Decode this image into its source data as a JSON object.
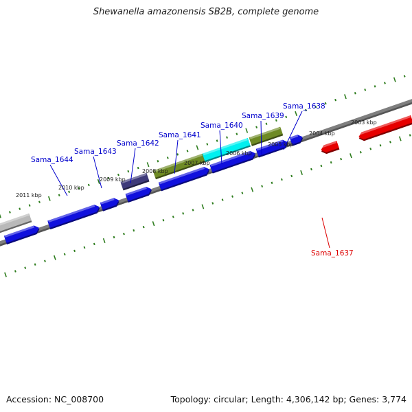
{
  "title": "Shewanella amazonensis SB2B, complete genome",
  "footer": {
    "accession": "Accession: NC_008700",
    "summary": "Topology: circular; Length: 4,306,142 bp; Genes: 3,774"
  },
  "colors": {
    "background": "#ffffff",
    "backbone": "#7f7f7f",
    "scale_ticks": "#2e7d1e",
    "cds_blue": "#1010dd",
    "cds_olive": "#6e8a24",
    "cds_cyan": "#00f0f0",
    "cds_purple": "#3e3a7a",
    "cds_gray": "#b9b9b9",
    "cds_red": "#e60000",
    "label_forward": "#0000cc",
    "label_reverse": "#dd0000"
  },
  "scale": {
    "upper_labels": [
      {
        "id": "2011",
        "text": "2011 kbp"
      },
      {
        "id": "2010",
        "text": "2010 kbp"
      },
      {
        "id": "2009",
        "text": "2009 kbp"
      },
      {
        "id": "2008",
        "text": "2008 kbp"
      },
      {
        "id": "2007",
        "text": "2007 kbp"
      },
      {
        "id": "2006",
        "text": "2006 kbp"
      },
      {
        "id": "2005",
        "text": "2005 kbp"
      },
      {
        "id": "2004",
        "text": "2004 kbp"
      },
      {
        "id": "2003",
        "text": "2003 kbp"
      }
    ]
  },
  "genes": [
    {
      "id": "Sama_1644",
      "label": "Sama_1644",
      "strand": "forward"
    },
    {
      "id": "Sama_1643",
      "label": "Sama_1643",
      "strand": "forward"
    },
    {
      "id": "Sama_1642",
      "label": "Sama_1642",
      "strand": "forward"
    },
    {
      "id": "Sama_1641",
      "label": "Sama_1641",
      "strand": "forward"
    },
    {
      "id": "Sama_1640",
      "label": "Sama_1640",
      "strand": "forward"
    },
    {
      "id": "Sama_1639",
      "label": "Sama_1639",
      "strand": "forward"
    },
    {
      "id": "Sama_1638",
      "label": "Sama_1638",
      "strand": "forward"
    },
    {
      "id": "Sama_1637",
      "label": "Sama_1637",
      "strand": "reverse"
    }
  ]
}
